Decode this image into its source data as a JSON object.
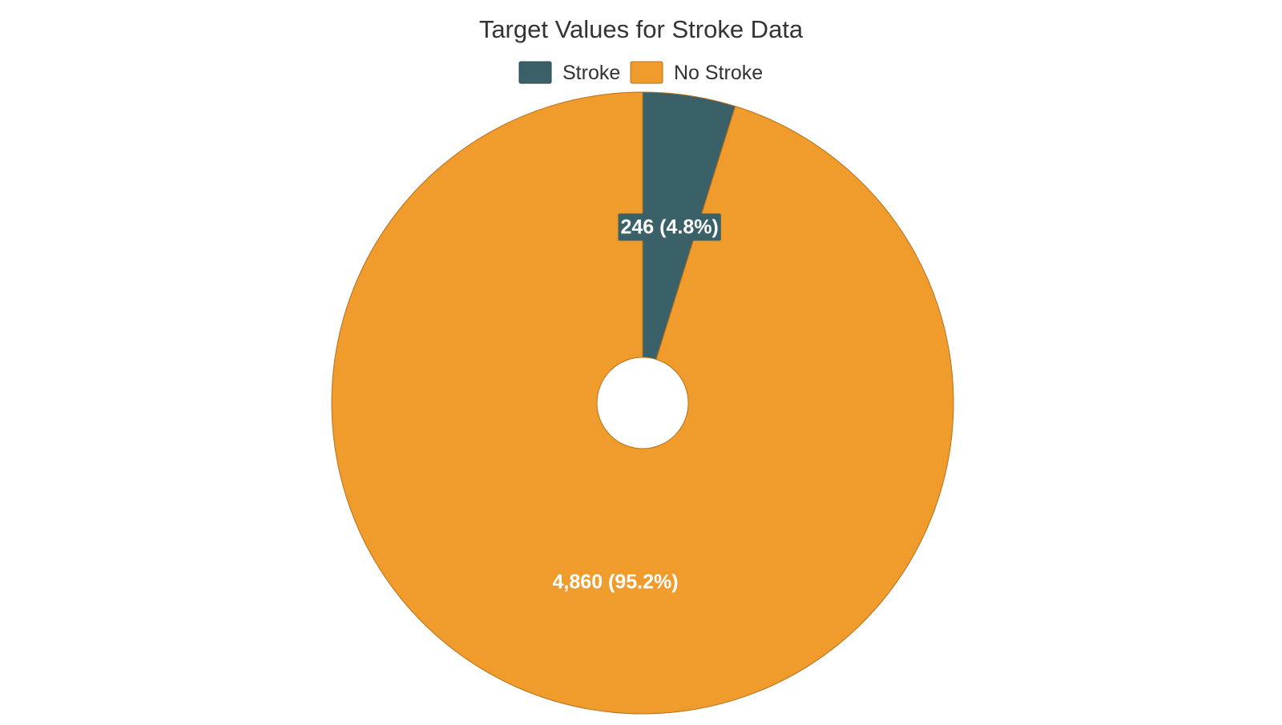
{
  "chart_data": {
    "type": "pie",
    "title": "Target Values for Stroke Data",
    "legend_position": "top",
    "slices": [
      {
        "name": "Stroke",
        "value": 246,
        "percent": 4.8,
        "label": "246 (4.8%)",
        "color": "#3a6068",
        "label_boxed": true
      },
      {
        "name": "No Stroke",
        "value": 4860,
        "percent": 95.2,
        "label": "4,860 (95.2%)",
        "color": "#f09c2d",
        "label_boxed": false
      }
    ],
    "border_color": "#b8701c",
    "hole": true
  }
}
